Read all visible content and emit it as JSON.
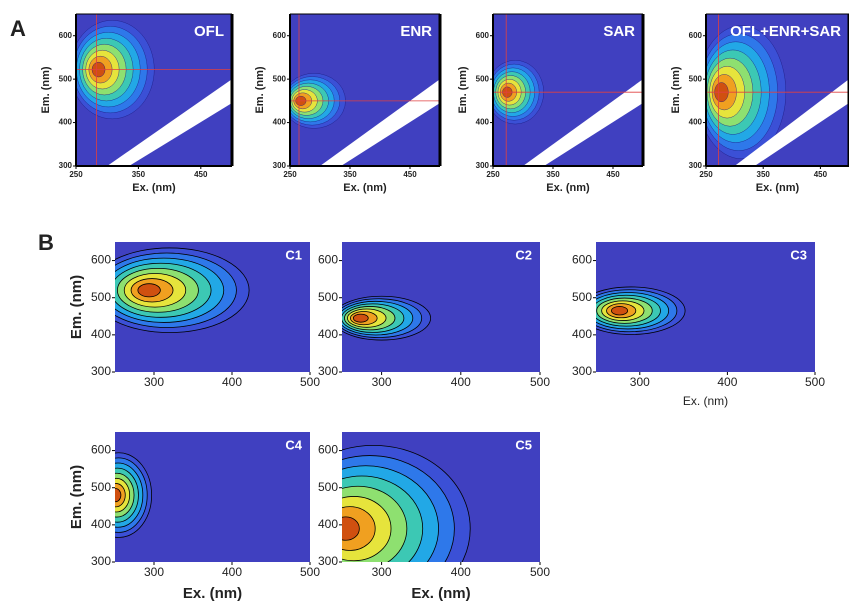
{
  "panel_labels": [
    "A",
    "B"
  ],
  "chart_data": [
    {
      "type": "contour",
      "title": "OFL",
      "xlabel": "Ex. (nm)",
      "ylabel": "Em. (nm)",
      "xlim": [
        250,
        500
      ],
      "ylim": [
        300,
        650
      ],
      "xticks": [
        250,
        350,
        450
      ],
      "yticks": [
        300,
        400,
        500,
        600
      ]
    },
    {
      "type": "contour",
      "title": "ENR",
      "xlabel": "Ex. (nm)",
      "ylabel": "Em. (nm)",
      "xlim": [
        250,
        500
      ],
      "ylim": [
        300,
        650
      ],
      "xticks": [
        250,
        350,
        450
      ],
      "yticks": [
        300,
        400,
        500,
        600
      ]
    },
    {
      "type": "contour",
      "title": "SAR",
      "xlabel": "Ex. (nm)",
      "ylabel": "Em. (nm)",
      "xlim": [
        250,
        500
      ],
      "ylim": [
        300,
        650
      ],
      "xticks": [
        250,
        350,
        450
      ],
      "yticks": [
        300,
        400,
        500,
        600
      ]
    },
    {
      "type": "contour",
      "title": "OFL+ENR+SAR",
      "xlabel": "Ex. (nm)",
      "ylabel": "Em. (nm)",
      "xlim": [
        250,
        500
      ],
      "ylim": [
        300,
        650
      ],
      "xticks": [
        250,
        350,
        450
      ],
      "yticks": [
        300,
        400,
        500,
        600
      ]
    },
    {
      "type": "contour",
      "title": "C1",
      "ylabel": "Em. (nm)",
      "xlim": [
        250,
        500
      ],
      "ylim": [
        300,
        650
      ],
      "xticks": [
        300,
        400,
        500
      ],
      "yticks": [
        300,
        400,
        500,
        600
      ]
    },
    {
      "type": "contour",
      "title": "C2",
      "xlim": [
        250,
        500
      ],
      "ylim": [
        300,
        650
      ],
      "xticks": [
        300,
        400,
        500
      ],
      "yticks": [
        300,
        400,
        500,
        600
      ]
    },
    {
      "type": "contour",
      "title": "C3",
      "xlabel": "Ex. (nm)",
      "xlim": [
        250,
        500
      ],
      "ylim": [
        300,
        650
      ],
      "xticks": [
        300,
        400,
        500
      ],
      "yticks": [
        300,
        400,
        500,
        600
      ]
    },
    {
      "type": "contour",
      "title": "C4",
      "xlabel": "Ex. (nm)",
      "ylabel": "Em. (nm)",
      "xlim": [
        250,
        500
      ],
      "ylim": [
        300,
        650
      ],
      "xticks": [
        300,
        400,
        500
      ],
      "yticks": [
        300,
        400,
        500,
        600
      ]
    },
    {
      "type": "contour",
      "title": "C5",
      "xlabel": "Ex. (nm)",
      "xlim": [
        250,
        500
      ],
      "ylim": [
        300,
        650
      ],
      "xticks": [
        300,
        400,
        500
      ],
      "yticks": [
        300,
        400,
        500,
        600
      ]
    }
  ]
}
